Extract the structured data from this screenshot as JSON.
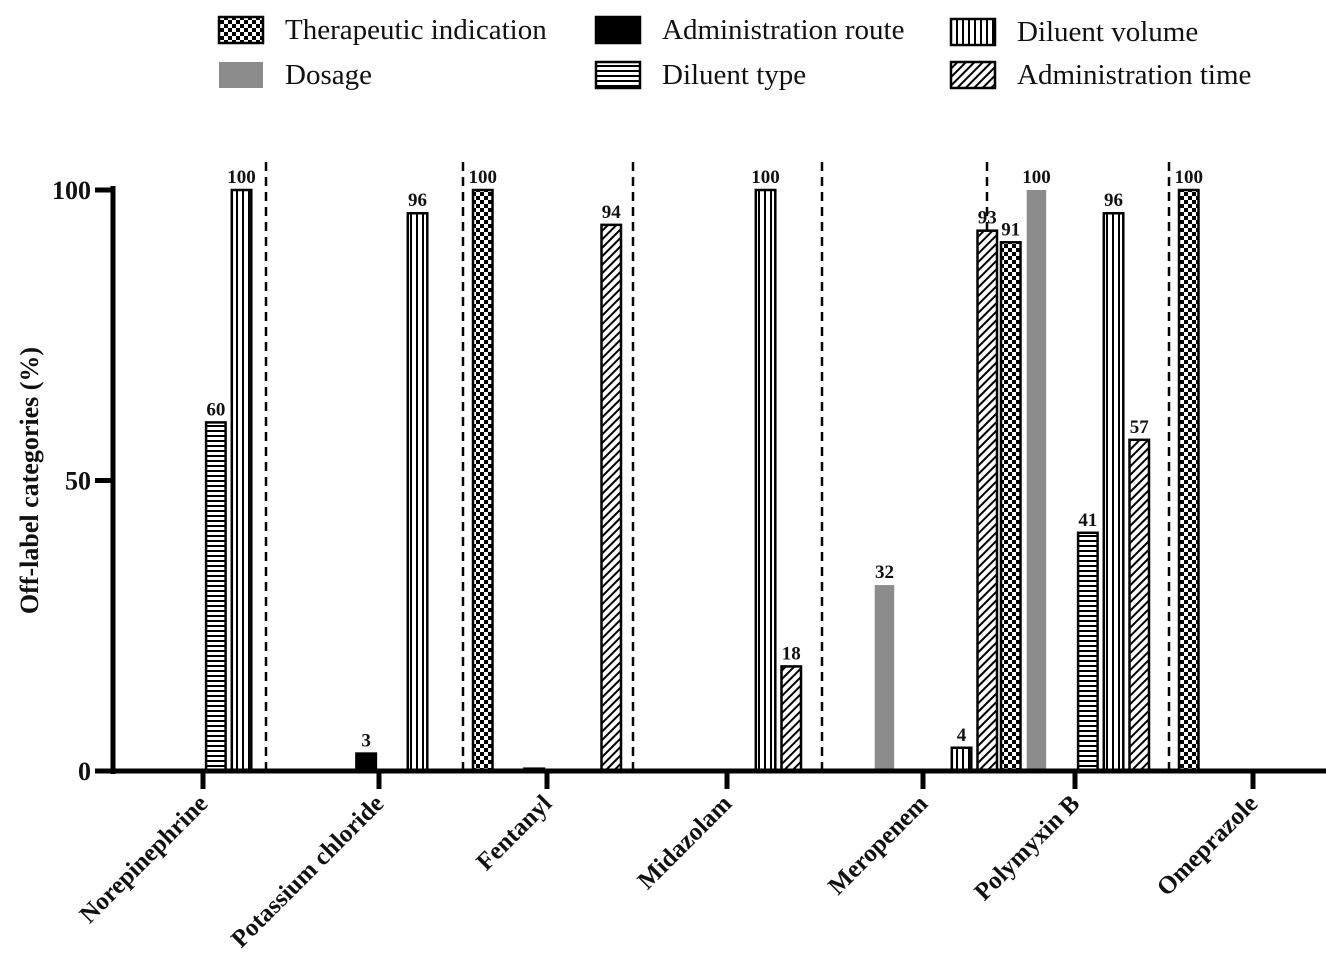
{
  "chart_data": {
    "type": "bar",
    "title": "",
    "xlabel": "",
    "ylabel": "Off-label categories (%)",
    "ylim": [
      0,
      100
    ],
    "yticks": [
      0,
      50,
      100
    ],
    "grid": false,
    "legend_position": "top",
    "categories": [
      "Norepinephrine",
      "Potassium chloride",
      "Fentanyl",
      "Midazolam",
      "Meropenem",
      "Polymyxin B",
      "Omeprazole"
    ],
    "series": [
      {
        "name": "Therapeutic indication",
        "pattern": "checker",
        "values": [
          0,
          0,
          100,
          0,
          0,
          91,
          100
        ]
      },
      {
        "name": "Dosage",
        "pattern": "solid-gray",
        "values": [
          0,
          0,
          0,
          0,
          32,
          100,
          0
        ]
      },
      {
        "name": "Administration route",
        "pattern": "solid-black",
        "values": [
          0,
          3,
          0.4,
          0,
          0,
          0,
          0
        ]
      },
      {
        "name": "Diluent type",
        "pattern": "horizontal",
        "values": [
          60,
          0,
          0,
          0,
          0,
          41,
          0
        ]
      },
      {
        "name": "Diluent volume",
        "pattern": "vertical",
        "values": [
          100,
          96,
          0,
          100,
          4,
          96,
          0
        ]
      },
      {
        "name": "Administration time",
        "pattern": "diagonal",
        "values": [
          0,
          0,
          94,
          18,
          93,
          57,
          0
        ]
      }
    ],
    "value_labels": [
      [
        "",
        "",
        "",
        "60",
        "100",
        ""
      ],
      [
        "",
        "",
        "3",
        "",
        "96",
        ""
      ],
      [
        "100",
        "",
        "",
        "",
        "",
        "94"
      ],
      [
        "",
        "",
        "",
        "",
        "100",
        "18"
      ],
      [
        "",
        "32",
        "",
        "",
        "4",
        "93"
      ],
      [
        "91",
        "100",
        "",
        "41",
        "96",
        "57"
      ],
      [
        "100",
        "",
        "",
        "",
        "",
        ""
      ]
    ],
    "legend_order": [
      0,
      2,
      4,
      1,
      3,
      5
    ]
  }
}
